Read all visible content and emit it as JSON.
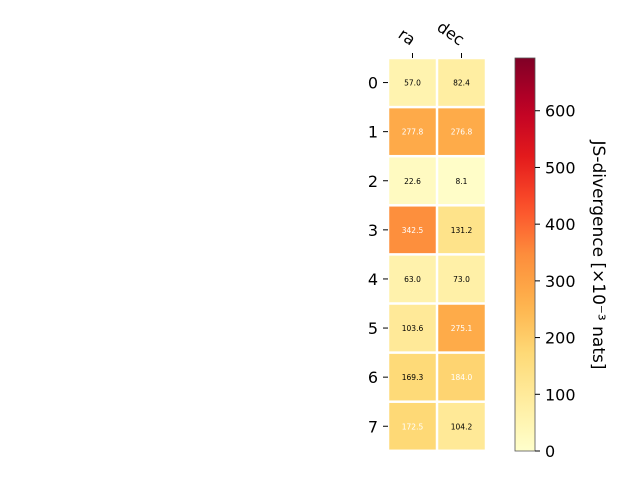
{
  "chart_data": {
    "type": "heatmap",
    "columns": [
      "ra",
      "dec"
    ],
    "rows": [
      "0",
      "1",
      "2",
      "3",
      "4",
      "5",
      "6",
      "7"
    ],
    "values": [
      [
        57.0,
        82.4
      ],
      [
        277.8,
        276.8
      ],
      [
        22.6,
        8.1
      ],
      [
        342.5,
        131.2
      ],
      [
        63.0,
        73.0
      ],
      [
        103.6,
        275.1
      ],
      [
        169.3,
        184.0
      ],
      [
        172.5,
        104.2
      ]
    ],
    "cell_labels": [
      [
        "57.0",
        "82.4"
      ],
      [
        "277.8",
        "276.8"
      ],
      [
        "22.6",
        "8.1"
      ],
      [
        "342.5",
        "131.2"
      ],
      [
        "63.0",
        "73.0"
      ],
      [
        "103.6",
        "275.1"
      ],
      [
        "169.3",
        "184.0"
      ],
      [
        "172.5",
        "104.2"
      ]
    ],
    "colorbar": {
      "label": "JS-divergence [×10⁻³ nats]",
      "range": [
        0,
        693
      ],
      "ticks": [
        0,
        100,
        200,
        300,
        400,
        500,
        600
      ],
      "tick_labels": [
        "0",
        "100",
        "200",
        "300",
        "400",
        "500",
        "600"
      ],
      "colormap": "YlOrRd"
    },
    "colors": {
      "text_dark": "#000000",
      "text_light": "#ffffff",
      "grid": "#ffffff"
    }
  }
}
